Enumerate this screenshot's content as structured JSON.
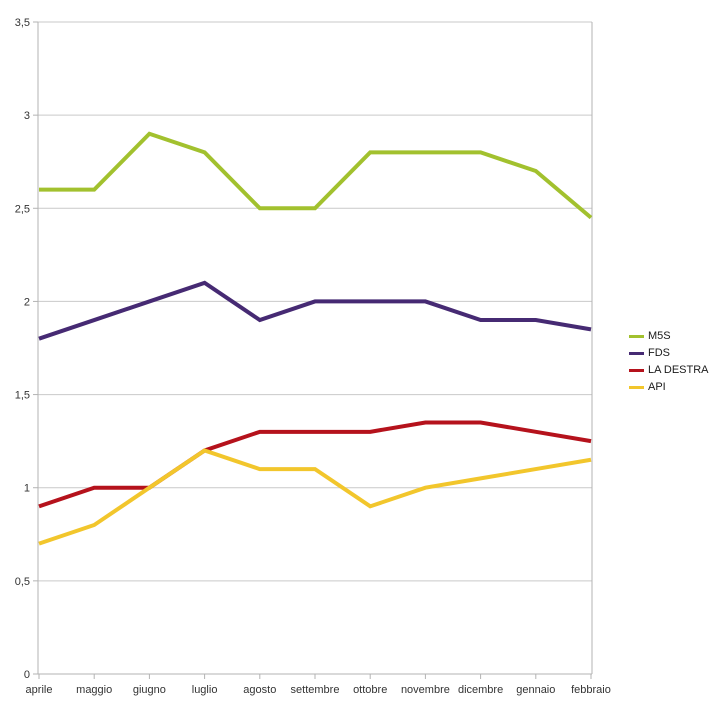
{
  "chart_data": {
    "type": "line",
    "title": "",
    "xlabel": "",
    "ylabel": "",
    "categories": [
      "aprile",
      "maggio",
      "giugno",
      "luglio",
      "agosto",
      "settembre",
      "ottobre",
      "novembre",
      "dicembre",
      "gennaio",
      "febbraio"
    ],
    "series": [
      {
        "name": "M5S",
        "color": "#a2c12e",
        "values": [
          2.6,
          2.6,
          2.9,
          2.8,
          2.5,
          2.5,
          2.8,
          2.8,
          2.8,
          2.7,
          2.45
        ]
      },
      {
        "name": "FDS",
        "color": "#462a73",
        "values": [
          1.8,
          1.9,
          2.0,
          2.1,
          1.9,
          2.0,
          2.0,
          2.0,
          1.9,
          1.9,
          1.85
        ]
      },
      {
        "name": "LA DESTRA",
        "color": "#b5121c",
        "values": [
          0.9,
          1.0,
          1.0,
          1.2,
          1.3,
          1.3,
          1.3,
          1.35,
          1.35,
          1.3,
          1.25
        ]
      },
      {
        "name": "API",
        "color": "#f2c62c",
        "values": [
          0.7,
          0.8,
          1.0,
          1.2,
          1.1,
          1.1,
          0.9,
          1.0,
          1.05,
          1.1,
          1.15
        ]
      }
    ],
    "ylim": [
      0,
      3.5
    ],
    "ytick_step": 0.5,
    "y_tick_labels": [
      "0",
      "0,5",
      "1",
      "1,5",
      "2",
      "2,5",
      "3",
      "3,5"
    ],
    "grid": "horizontal",
    "legend_position": "right",
    "line_width": 4,
    "colors": {
      "background": "#ffffff",
      "gridline": "#c9c9c9",
      "axis": "#b3b3b3",
      "tick_text": "#333333"
    }
  }
}
